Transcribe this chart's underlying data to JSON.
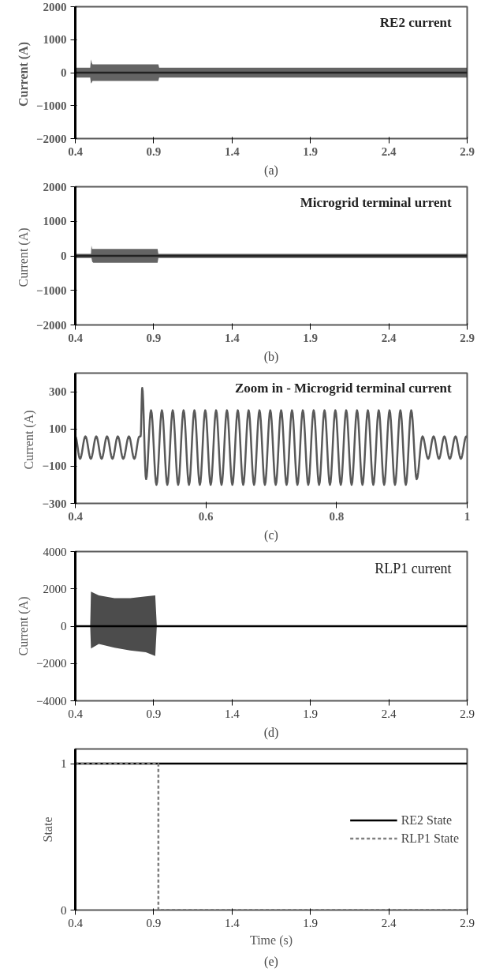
{
  "chart_data": [
    {
      "type": "line",
      "title": "RE2 current",
      "ylabel": "Current  (A)",
      "annotations": [
        "(a)"
      ],
      "xlim": [
        0.4,
        2.9
      ],
      "xticks": [
        0.4,
        0.9,
        1.4,
        1.9,
        2.4,
        2.9
      ],
      "ylim": [
        -2000,
        2000
      ],
      "yticks": [
        -2000,
        -1000,
        0,
        1000,
        2000
      ],
      "grid": false,
      "series": [
        {
          "color": "#222222",
          "x": [
            0.4,
            0.495,
            0.5,
            0.505,
            0.51,
            0.93,
            0.935,
            2.9
          ],
          "values": [
            0,
            0,
            0,
            0,
            0,
            0,
            0,
            0
          ],
          "upper": [
            150,
            150,
            400,
            300,
            250,
            250,
            150,
            150
          ],
          "lower": [
            -150,
            -150,
            -330,
            -300,
            -250,
            -250,
            -150,
            -150
          ]
        }
      ]
    },
    {
      "type": "line",
      "title": "Microgrid terminal urrent",
      "ylabel": "Current  (A)",
      "annotations": [
        "(b)"
      ],
      "xlim": [
        0.4,
        2.9
      ],
      "xticks": [
        0.4,
        0.9,
        1.4,
        1.9,
        2.4,
        2.9
      ],
      "ylim": [
        -2000,
        2000
      ],
      "yticks": [
        -2000,
        -1000,
        0,
        1000,
        2000
      ],
      "grid": false,
      "series": [
        {
          "color": "#222222",
          "x": [
            0.4,
            0.5,
            0.503,
            0.508,
            0.515,
            0.925,
            0.93,
            2.9
          ],
          "values": [
            0,
            0,
            0,
            0,
            0,
            0,
            0,
            0
          ],
          "upper": [
            60,
            60,
            300,
            200,
            200,
            200,
            60,
            60
          ],
          "lower": [
            -60,
            -60,
            -60,
            -170,
            -200,
            -200,
            -60,
            -60
          ]
        }
      ]
    },
    {
      "type": "line",
      "title": "Zoom in - Microgrid terminal current",
      "ylabel": "Current  (A)",
      "annotations": [
        "(c)"
      ],
      "xlim": [
        0.4,
        1
      ],
      "xticks": [
        0.4,
        0.6,
        0.8,
        1
      ],
      "ylim": [
        -300,
        400
      ],
      "yticks": [
        -300,
        -100,
        100,
        300
      ],
      "grid": false,
      "series": [
        {
          "color": "#595959",
          "x": [
            0.4,
            0.4073,
            0.4155,
            0.4238,
            0.4321,
            0.4403,
            0.4486,
            0.4569,
            0.4651,
            0.4734,
            0.4821,
            0.4904,
            0.4982,
            0.5,
            0.5025,
            0.5084,
            0.516,
            0.5243,
            0.5326,
            0.5409,
            0.5492,
            0.5575,
            0.5658,
            0.5741,
            0.5824,
            0.5907,
            0.599,
            0.6073,
            0.6156,
            0.6239,
            0.6322,
            0.6405,
            0.6488,
            0.6571,
            0.6654,
            0.6737,
            0.682,
            0.6903,
            0.6986,
            0.7069,
            0.7152,
            0.7235,
            0.7318,
            0.7401,
            0.7484,
            0.7567,
            0.765,
            0.7733,
            0.7816,
            0.7899,
            0.7982,
            0.8065,
            0.8148,
            0.8231,
            0.8314,
            0.8397,
            0.848,
            0.8563,
            0.8646,
            0.8729,
            0.8812,
            0.8895,
            0.8978,
            0.9061,
            0.9144,
            0.9227,
            0.9316,
            0.9403,
            0.9486,
            0.9568,
            0.9651,
            0.9734,
            0.9821,
            0.9904,
            0.9986,
            1
          ],
          "values": [
            60,
            -60,
            60,
            -60,
            60,
            -60,
            60,
            -60,
            60,
            -60,
            60,
            -60,
            60,
            60,
            320,
            -170,
            200,
            -200,
            200,
            -200,
            200,
            -200,
            200,
            -200,
            200,
            -200,
            200,
            -200,
            200,
            -200,
            200,
            -200,
            200,
            -200,
            200,
            -200,
            200,
            -200,
            200,
            -200,
            200,
            -200,
            200,
            -200,
            200,
            -200,
            200,
            -200,
            200,
            -200,
            200,
            -200,
            200,
            -200,
            200,
            -200,
            200,
            -200,
            200,
            -200,
            200,
            -200,
            200,
            -200,
            200,
            -170,
            60,
            -60,
            60,
            -60,
            60,
            -60,
            60,
            -60,
            60,
            55
          ]
        }
      ]
    },
    {
      "type": "line",
      "title": "RLP1 current",
      "ylabel": "Current (A)",
      "annotations": [
        "(d)"
      ],
      "xlim": [
        0.4,
        2.9
      ],
      "xticks": [
        0.4,
        0.9,
        1.4,
        1.9,
        2.4,
        2.9
      ],
      "ylim": [
        -4000,
        4000
      ],
      "yticks": [
        -4000,
        -2000,
        0,
        2000,
        4000
      ],
      "grid": false,
      "series": [
        {
          "color": "#000000",
          "x": [
            0.4,
            0.495,
            0.5,
            0.55,
            0.65,
            0.75,
            0.85,
            0.91,
            0.92,
            2.9
          ],
          "values": [
            0,
            0,
            0,
            0,
            0,
            0,
            0,
            0,
            0,
            0
          ],
          "upper": [
            0,
            0,
            1850,
            1650,
            1500,
            1500,
            1600,
            1650,
            0,
            0
          ],
          "lower": [
            0,
            0,
            -1200,
            -950,
            -1150,
            -1300,
            -1400,
            -1600,
            0,
            0
          ]
        }
      ]
    },
    {
      "type": "line",
      "xlabel": "Time (s)",
      "ylabel": "State",
      "annotations": [
        "(e)"
      ],
      "xlim": [
        0.4,
        2.9
      ],
      "xticks": [
        0.4,
        0.9,
        1.4,
        1.9,
        2.4,
        2.9
      ],
      "ylim": [
        0,
        1.1
      ],
      "yticks": [
        0,
        1
      ],
      "grid": false,
      "legend": "right",
      "series": [
        {
          "name": "RE2 State",
          "color": "#000000",
          "line_style": "solid",
          "x": [
            0.4,
            2.9
          ],
          "values": [
            1,
            1
          ]
        },
        {
          "name": "RLP1 State",
          "color": "#7f7f7f",
          "line_style": "dashed",
          "x": [
            0.4,
            0.93,
            0.93,
            2.9
          ],
          "values": [
            1,
            1,
            0,
            0
          ]
        }
      ]
    }
  ]
}
